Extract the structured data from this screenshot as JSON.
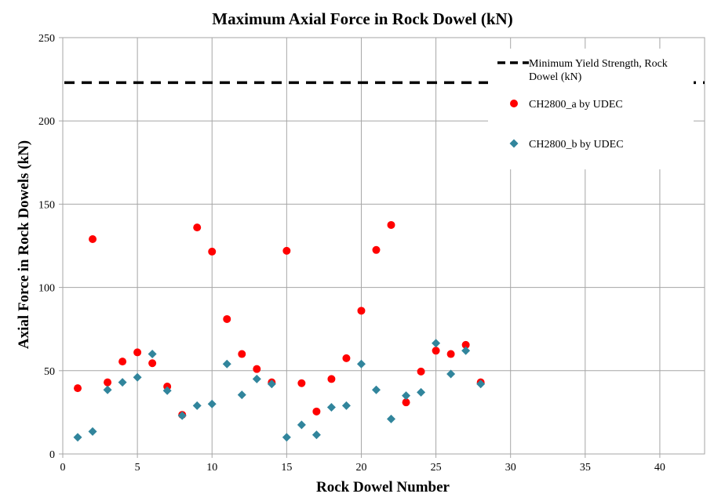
{
  "chart_data": {
    "type": "scatter",
    "title": "Maximum Axial Force in Rock Dowel (kN)",
    "xlabel": "Rock Dowel Number",
    "ylabel": "Axial Force in Rock Dowels (kN)",
    "xlim": [
      0,
      43
    ],
    "ylim": [
      0,
      250
    ],
    "x_ticks": [
      0,
      5,
      10,
      15,
      20,
      25,
      30,
      35,
      40
    ],
    "y_ticks": [
      0,
      50,
      100,
      150,
      200,
      250
    ],
    "grid": true,
    "legend_position": "top-right",
    "reference_line": {
      "name_lines": [
        "Minimum Yield Strength, Rock",
        "Dowel (kN)"
      ],
      "y": 223,
      "color": "#000000",
      "style": "dashed"
    },
    "series": [
      {
        "name": "CH2800_a by UDEC",
        "marker": "circle",
        "color": "#ff0000",
        "x": [
          1,
          2,
          3,
          4,
          5,
          6,
          7,
          8,
          9,
          10,
          11,
          12,
          13,
          14,
          15,
          16,
          17,
          18,
          19,
          20,
          21,
          22,
          23,
          24,
          25,
          26,
          27,
          28
        ],
        "y": [
          39.5,
          129,
          43,
          55.5,
          61,
          54.5,
          40.5,
          23.5,
          136,
          121.5,
          81,
          60,
          51,
          43,
          122,
          42.5,
          25.5,
          45,
          57.5,
          86,
          122.5,
          137.5,
          31,
          49.5,
          62,
          60,
          65.5,
          43
        ]
      },
      {
        "name": "CH2800_b by UDEC",
        "marker": "diamond",
        "color": "#31859c",
        "x": [
          1,
          2,
          3,
          4,
          5,
          6,
          7,
          8,
          9,
          10,
          11,
          12,
          13,
          14,
          15,
          16,
          17,
          18,
          19,
          20,
          21,
          22,
          23,
          24,
          25,
          26,
          27,
          28
        ],
        "y": [
          10,
          13.5,
          38.5,
          43,
          46,
          60,
          38,
          23,
          29,
          30,
          54,
          35.5,
          45,
          42,
          10,
          17.5,
          11.5,
          28,
          29,
          54,
          38.5,
          21,
          35,
          37,
          66.5,
          48,
          62,
          42
        ]
      }
    ]
  }
}
